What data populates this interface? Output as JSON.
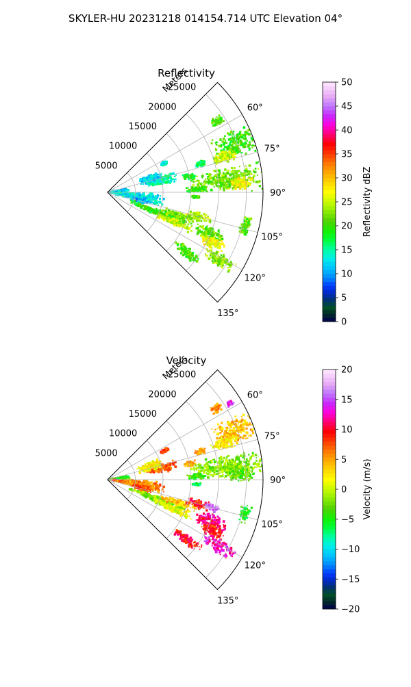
{
  "figure": {
    "title": "SKYLER-HU  20231218  014154.714 UTC Elevation 04°"
  },
  "chart_data": [
    {
      "type": "heatmap",
      "projection": "polar-sector",
      "title": "Reflectivity",
      "radial_label": "Meters",
      "radial_ticks": [
        "5000",
        "10000",
        "15000",
        "20000",
        "25000"
      ],
      "angle_ticks": [
        "60°",
        "75°",
        "90°",
        "105°",
        "120°",
        "135°"
      ],
      "angle_range_deg": [
        45,
        135
      ],
      "range_max_m": 28000,
      "colorbar": {
        "label": "Reflectivity dBZ",
        "range": [
          0,
          50
        ],
        "ticks": [
          "0",
          "5",
          "10",
          "15",
          "20",
          "25",
          "30",
          "35",
          "40",
          "45",
          "50"
        ]
      },
      "echo_regions": [
        {
          "az": 57,
          "r": 23500,
          "daz": 2,
          "dr": 1200,
          "value": 20
        },
        {
          "az": 69,
          "r": 24500,
          "daz": 6,
          "dr": 4000,
          "value": 20
        },
        {
          "az": 73,
          "r": 22000,
          "daz": 3,
          "dr": 2500,
          "value": 25
        },
        {
          "az": 84,
          "r": 22000,
          "daz": 6,
          "dr": 7000,
          "value": 22
        },
        {
          "az": 86,
          "r": 24000,
          "daz": 3,
          "dr": 2500,
          "value": 27
        },
        {
          "az": 78,
          "r": 10000,
          "daz": 5,
          "dr": 3000,
          "value": 15
        },
        {
          "az": 63,
          "r": 11500,
          "daz": 2,
          "dr": 800,
          "value": 14
        },
        {
          "az": 79,
          "r": 15000,
          "daz": 2,
          "dr": 1200,
          "value": 18
        },
        {
          "az": 73,
          "r": 17500,
          "daz": 2,
          "dr": 1000,
          "value": 17
        },
        {
          "az": 88,
          "r": 16000,
          "daz": 2,
          "dr": 2000,
          "value": 20
        },
        {
          "az": 93,
          "r": 16000,
          "daz": 1,
          "dr": 800,
          "value": 20
        },
        {
          "az": 73,
          "r": 8000,
          "daz": 6,
          "dr": 2500,
          "value": 12
        },
        {
          "az": 85,
          "r": 2000,
          "daz": 7,
          "dr": 2000,
          "value": 12
        },
        {
          "az": 98,
          "r": 5500,
          "daz": 8,
          "dr": 5000,
          "value": 13
        },
        {
          "az": 104,
          "r": 6000,
          "daz": 4,
          "dr": 2000,
          "value": 11
        },
        {
          "az": 112,
          "r": 10000,
          "daz": 4,
          "dr": 6000,
          "value": 19
        },
        {
          "az": 114,
          "r": 13000,
          "daz": 3,
          "dr": 4000,
          "value": 25
        },
        {
          "az": 108,
          "r": 13500,
          "daz": 3,
          "dr": 3500,
          "value": 22
        },
        {
          "az": 105,
          "r": 17000,
          "daz": 3,
          "dr": 2500,
          "value": 24
        },
        {
          "az": 112,
          "r": 20000,
          "daz": 4,
          "dr": 3000,
          "value": 22
        },
        {
          "az": 116,
          "r": 21000,
          "daz": 3,
          "dr": 2500,
          "value": 27
        },
        {
          "az": 121,
          "r": 23500,
          "daz": 3,
          "dr": 3500,
          "value": 23
        },
        {
          "az": 127,
          "r": 18000,
          "daz": 3,
          "dr": 3000,
          "value": 21
        },
        {
          "az": 104,
          "r": 25500,
          "daz": 4,
          "dr": 1000,
          "value": 21
        }
      ]
    },
    {
      "type": "heatmap",
      "projection": "polar-sector",
      "title": "Velocity",
      "radial_label": "Meters",
      "radial_ticks": [
        "5000",
        "10000",
        "15000",
        "20000",
        "25000"
      ],
      "angle_ticks": [
        "60°",
        "75°",
        "90°",
        "105°",
        "120°",
        "135°"
      ],
      "angle_range_deg": [
        45,
        135
      ],
      "range_max_m": 28000,
      "colorbar": {
        "label": "Velocity (m/s)",
        "range": [
          -20,
          20
        ],
        "ticks": [
          "−20",
          "−15",
          "−10",
          "−5",
          "0",
          "5",
          "10",
          "15",
          "20"
        ]
      },
      "echo_regions": [
        {
          "az": 57,
          "r": 23500,
          "daz": 2,
          "dr": 1200,
          "value": 6
        },
        {
          "az": 58,
          "r": 26000,
          "daz": 1,
          "dr": 600,
          "value": 14
        },
        {
          "az": 69,
          "r": 24500,
          "daz": 6,
          "dr": 4000,
          "value": 4
        },
        {
          "az": 73,
          "r": 22000,
          "daz": 3,
          "dr": 2500,
          "value": 2
        },
        {
          "az": 84,
          "r": 22000,
          "daz": 6,
          "dr": 7000,
          "value": -2
        },
        {
          "az": 88,
          "r": 24000,
          "daz": 3,
          "dr": 2500,
          "value": -3
        },
        {
          "az": 78,
          "r": 10000,
          "daz": 5,
          "dr": 3000,
          "value": 7
        },
        {
          "az": 63,
          "r": 11500,
          "daz": 2,
          "dr": 800,
          "value": 8
        },
        {
          "az": 79,
          "r": 15000,
          "daz": 2,
          "dr": 1200,
          "value": 5
        },
        {
          "az": 73,
          "r": 17500,
          "daz": 2,
          "dr": 1000,
          "value": 5
        },
        {
          "az": 88,
          "r": 16000,
          "daz": 2,
          "dr": 2000,
          "value": -4
        },
        {
          "az": 93,
          "r": 16000,
          "daz": 1,
          "dr": 800,
          "value": -6
        },
        {
          "az": 73,
          "r": 8000,
          "daz": 6,
          "dr": 2500,
          "value": 2
        },
        {
          "az": 85,
          "r": 2000,
          "daz": 7,
          "dr": 2000,
          "value": -4
        },
        {
          "az": 96,
          "r": 1500,
          "daz": 3,
          "dr": 800,
          "value": 14
        },
        {
          "az": 98,
          "r": 5500,
          "daz": 8,
          "dr": 5000,
          "value": 6
        },
        {
          "az": 104,
          "r": 6500,
          "daz": 4,
          "dr": 2000,
          "value": 8
        },
        {
          "az": 112,
          "r": 10000,
          "daz": 4,
          "dr": 6000,
          "value": -2
        },
        {
          "az": 114,
          "r": 13000,
          "daz": 3,
          "dr": 4000,
          "value": 1
        },
        {
          "az": 108,
          "r": 13500,
          "daz": 3,
          "dr": 3500,
          "value": 4
        },
        {
          "az": 105,
          "r": 17000,
          "daz": 3,
          "dr": 2500,
          "value": 9
        },
        {
          "az": 105,
          "r": 19500,
          "daz": 2,
          "dr": 1500,
          "value": 16
        },
        {
          "az": 112,
          "r": 20000,
          "daz": 4,
          "dr": 3000,
          "value": 11
        },
        {
          "az": 116,
          "r": 21000,
          "daz": 3,
          "dr": 2500,
          "value": 9
        },
        {
          "az": 121,
          "r": 23500,
          "daz": 3,
          "dr": 3500,
          "value": 13
        },
        {
          "az": 127,
          "r": 18000,
          "daz": 3,
          "dr": 3000,
          "value": 10
        },
        {
          "az": 104,
          "r": 25500,
          "daz": 4,
          "dr": 1000,
          "value": -5
        }
      ]
    }
  ]
}
